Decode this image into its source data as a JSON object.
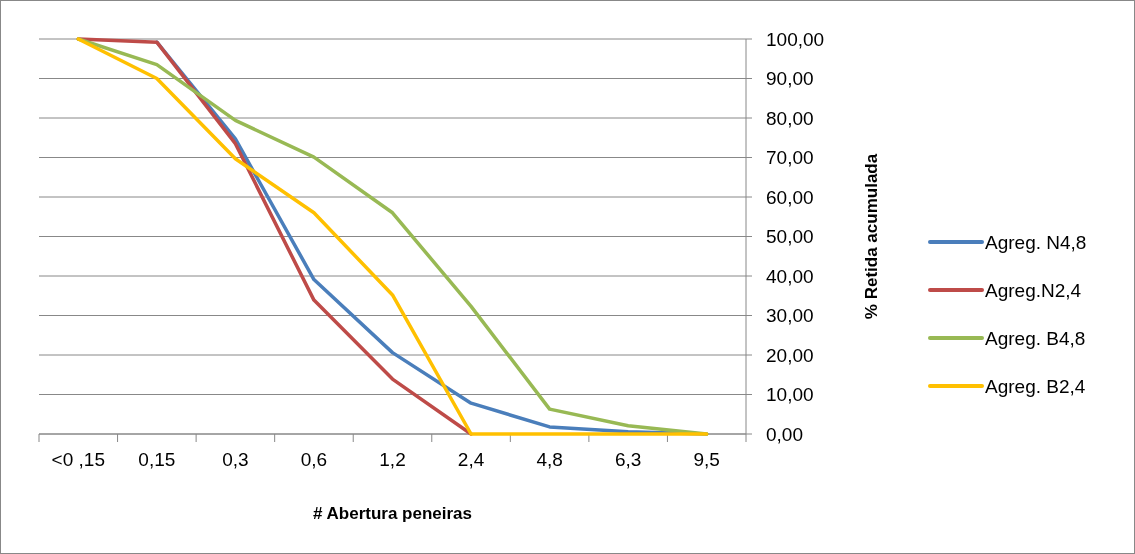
{
  "chart_data": {
    "type": "line",
    "xlabel": "# Abertura peneiras",
    "ylabel": "% Retida acumulada",
    "categories": [
      "<0 ,15",
      "0,15",
      "0,3",
      "0,6",
      "1,2",
      "2,4",
      "4,8",
      "6,3",
      "9,5"
    ],
    "series": [
      {
        "name": "Agreg. N4,8",
        "color": "#4a7ebb",
        "values": [
          null,
          99.2,
          74.7,
          39.1,
          20.6,
          7.8,
          1.8,
          0.6,
          0
        ]
      },
      {
        "name": "Agreg.N2,4",
        "color": "#be4b48",
        "values": [
          100,
          99.2,
          73.5,
          33.9,
          13.9,
          0,
          null,
          null,
          null
        ]
      },
      {
        "name": "Agreg. B4,8",
        "color": "#98b954",
        "values": [
          100,
          93.5,
          79.4,
          70.1,
          56,
          32.3,
          6.3,
          2.1,
          0
        ]
      },
      {
        "name": "Agreg. B2,4",
        "color": "#ffc000",
        "values": [
          100,
          90,
          69.7,
          56,
          35.2,
          0,
          0,
          0,
          0
        ]
      }
    ],
    "ylim": [
      0,
      100
    ],
    "yticks": [
      {
        "value": 0,
        "label": "0,00"
      },
      {
        "value": 10,
        "label": "10,00"
      },
      {
        "value": 20,
        "label": "20,00"
      },
      {
        "value": 30,
        "label": "30,00"
      },
      {
        "value": 40,
        "label": "40,00"
      },
      {
        "value": 50,
        "label": "50,00"
      },
      {
        "value": 60,
        "label": "60,00"
      },
      {
        "value": 70,
        "label": "70,00"
      },
      {
        "value": 80,
        "label": "80,00"
      },
      {
        "value": 90,
        "label": "90,00"
      },
      {
        "value": 100,
        "label": "100,00"
      }
    ],
    "grid": "y",
    "legend": "right",
    "marker": "none",
    "line_style": "solid"
  }
}
